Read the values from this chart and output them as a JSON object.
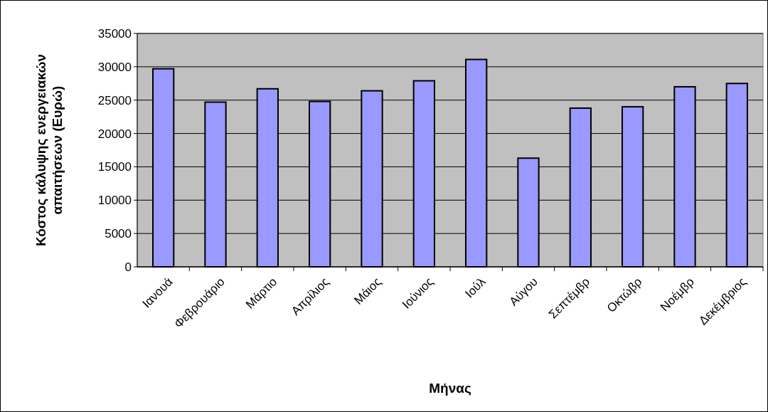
{
  "chart_data": {
    "type": "bar",
    "xlabel": "Μήνας",
    "ylabel": "Κόστος κάλυψης ενεργειακών απαιτήσεων (Ευρώ)",
    "categories": [
      "Ιανουά",
      "Φεβρουάριο",
      "Μάρτιο",
      "Απρίλιος",
      "Μάιος",
      "Ιούνιος",
      "Ιούλ",
      "Αύγου",
      "Σεπτέμβρ",
      "Οκτώβρ",
      "Νοέμβρ",
      "Δεκέμβριος"
    ],
    "values": [
      29700,
      24700,
      26700,
      24800,
      26400,
      27900,
      31100,
      16300,
      23800,
      24000,
      27000,
      27500
    ],
    "color": "#9999ff",
    "ylim": [
      0,
      35000
    ],
    "yticks": [
      0,
      5000,
      10000,
      15000,
      20000,
      25000,
      30000,
      35000
    ],
    "grid": "y"
  }
}
